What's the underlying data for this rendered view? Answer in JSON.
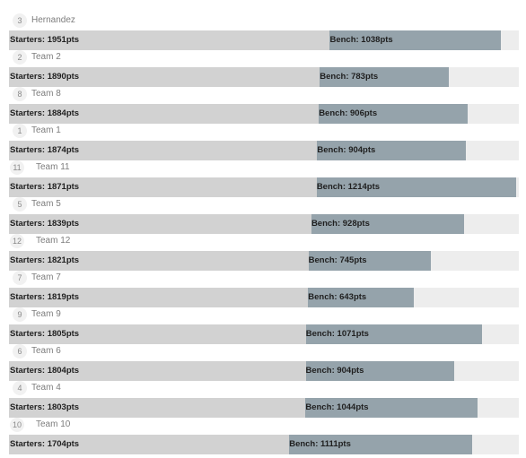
{
  "labels": {
    "starters_prefix": "Starters: ",
    "bench_prefix": "Bench: ",
    "unit": "pts"
  },
  "colors": {
    "track": "#ededed",
    "starters": "#d2d2d2",
    "bench": "#95a3ab"
  },
  "chart_data": {
    "type": "bar",
    "stacked": true,
    "orientation": "horizontal",
    "title": "",
    "xlabel": "",
    "ylabel": "",
    "xlim": [
      0,
      3100
    ],
    "grid": false,
    "categories": [
      "Hernandez",
      "Team 2",
      "Team 8",
      "Team 1",
      "Team 11",
      "Team 5",
      "Team 12",
      "Team 7",
      "Team 9",
      "Team 6",
      "Team 4",
      "Team 10"
    ],
    "ranks": [
      "3",
      "2",
      "8",
      "1",
      "11",
      "5",
      "12",
      "7",
      "9",
      "6",
      "4",
      "10"
    ],
    "series": [
      {
        "name": "Starters",
        "values": [
          1951,
          1890,
          1884,
          1874,
          1871,
          1839,
          1821,
          1819,
          1805,
          1804,
          1803,
          1704
        ]
      },
      {
        "name": "Bench",
        "values": [
          1038,
          783,
          906,
          904,
          1214,
          928,
          745,
          643,
          1071,
          904,
          1044,
          1111
        ]
      }
    ]
  }
}
